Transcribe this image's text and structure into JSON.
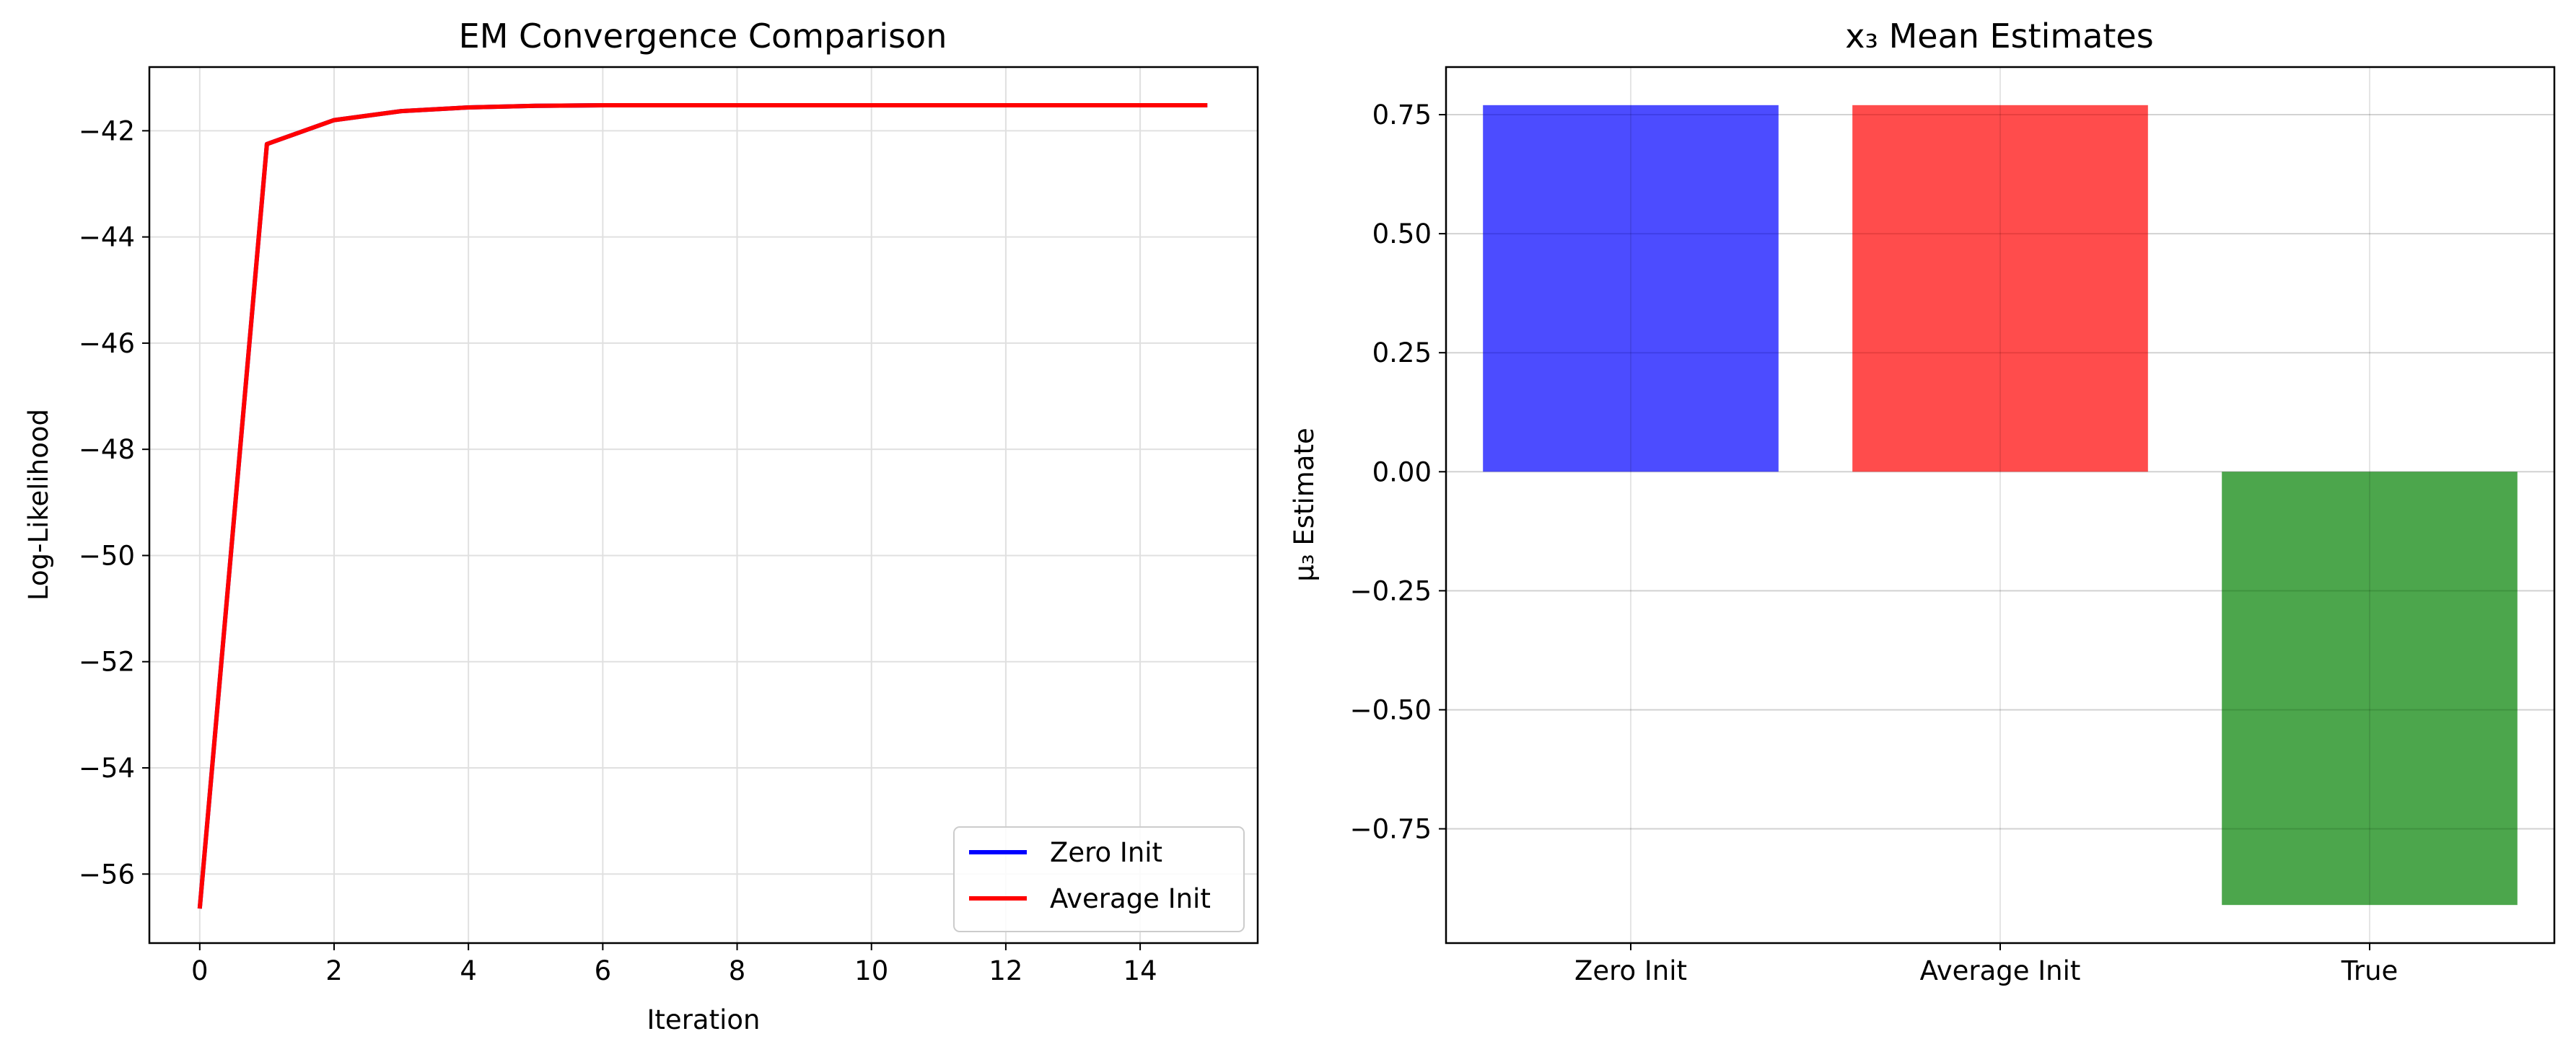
{
  "colors": {
    "zero_init": "#0000ff",
    "average_init": "#ff0000",
    "true": "#008000",
    "grid": "#e0e0e0"
  },
  "chart_data": [
    {
      "type": "line",
      "title": "EM Convergence Comparison",
      "xlabel": "Iteration",
      "ylabel": "Log-Likelihood",
      "xlim": [
        -0.75,
        15.75
      ],
      "ylim": [
        -57.3,
        -40.8
      ],
      "xticks": [
        0,
        2,
        4,
        6,
        8,
        10,
        12,
        14
      ],
      "yticks": [
        -56,
        -54,
        -52,
        -50,
        -48,
        -46,
        -44,
        -42
      ],
      "grid": true,
      "legend_position": "lower-right",
      "series": [
        {
          "name": "Zero Init",
          "color": "#0000ff",
          "x": [
            0,
            1,
            2,
            3,
            4,
            5,
            6,
            7,
            8,
            9,
            10,
            11,
            12,
            13,
            14,
            15
          ],
          "y": [
            -56.65,
            -42.25,
            -41.8,
            -41.63,
            -41.56,
            -41.53,
            -41.52,
            -41.52,
            -41.52,
            -41.52,
            -41.52,
            -41.52,
            -41.52,
            -41.52,
            -41.52,
            -41.52
          ]
        },
        {
          "name": "Average Init",
          "color": "#ff0000",
          "x": [
            0,
            1,
            2,
            3,
            4,
            5,
            6,
            7,
            8,
            9,
            10,
            11,
            12,
            13,
            14,
            15
          ],
          "y": [
            -56.65,
            -42.25,
            -41.8,
            -41.63,
            -41.56,
            -41.53,
            -41.52,
            -41.52,
            -41.52,
            -41.52,
            -41.52,
            -41.52,
            -41.52,
            -41.52,
            -41.52,
            -41.52
          ]
        }
      ]
    },
    {
      "type": "bar",
      "title": "x₃ Mean Estimates",
      "xlabel": "",
      "ylabel": "μ₃ Estimate",
      "categories": [
        "Zero Init",
        "Average Init",
        "True"
      ],
      "values": [
        0.77,
        0.77,
        -0.91
      ],
      "colors": [
        "#0000ff",
        "#ff0000",
        "#008000"
      ],
      "alpha": 0.7,
      "ylim": [
        -0.99,
        0.85
      ],
      "yticks": [
        -0.75,
        -0.5,
        -0.25,
        0.0,
        0.25,
        0.5,
        0.75
      ],
      "ytick_labels": [
        "−0.75",
        "−0.50",
        "−0.25",
        "0.00",
        "0.25",
        "0.50",
        "0.75"
      ],
      "grid": true
    }
  ]
}
